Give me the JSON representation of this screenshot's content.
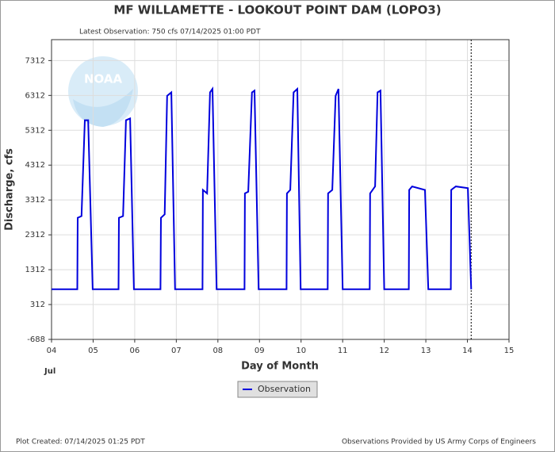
{
  "chart_data": {
    "type": "line",
    "title": "MF WILLAMETTE - LOOKOUT POINT DAM  (LOPO3)",
    "subtitle": "Latest Observation: 750 cfs 07/14/2025 01:00 PDT",
    "watermark": "NOAA",
    "ylabel": "Discharge, cfs",
    "xlabel": "Day of Month",
    "x_sublabel": "Jul",
    "footer_left": "Plot Created: 07/14/2025 01:25 PDT",
    "footer_right": "Observations Provided by US Army Corps of Engineers",
    "xlim": [
      4,
      15
    ],
    "xticks": [
      {
        "value": 4,
        "label": "04"
      },
      {
        "value": 5,
        "label": "05"
      },
      {
        "value": 6,
        "label": "06"
      },
      {
        "value": 7,
        "label": "07"
      },
      {
        "value": 8,
        "label": "08"
      },
      {
        "value": 9,
        "label": "09"
      },
      {
        "value": 10,
        "label": "10"
      },
      {
        "value": 11,
        "label": "11"
      },
      {
        "value": 12,
        "label": "12"
      },
      {
        "value": 13,
        "label": "13"
      },
      {
        "value": 14,
        "label": "14"
      },
      {
        "value": 15,
        "label": "15"
      }
    ],
    "ylim": [
      -688,
      7912
    ],
    "yticks": [
      -688,
      312,
      1312,
      2312,
      3312,
      4312,
      5312,
      6312,
      7312
    ],
    "grid": true,
    "current_time_x": 14.09,
    "x": [
      4.0,
      4.62,
      4.63,
      4.72,
      4.8,
      4.88,
      4.99,
      5.61,
      5.62,
      5.72,
      5.79,
      5.89,
      5.98,
      6.62,
      6.63,
      6.72,
      6.78,
      6.88,
      6.97,
      7.63,
      7.64,
      7.74,
      7.81,
      7.87,
      7.97,
      8.64,
      8.65,
      8.73,
      8.82,
      8.88,
      8.98,
      9.65,
      9.66,
      9.74,
      9.82,
      9.91,
      9.99,
      10.64,
      10.65,
      10.75,
      10.83,
      10.9,
      11.0,
      11.65,
      11.66,
      11.78,
      11.84,
      11.91,
      12.0,
      12.59,
      12.6,
      12.67,
      12.98,
      13.06,
      13.6,
      13.61,
      13.72,
      14.01,
      14.09
    ],
    "series": [
      {
        "name": "Observation",
        "color": "#0000dd",
        "values": [
          750,
          750,
          2800,
          2850,
          5600,
          5600,
          750,
          750,
          2800,
          2850,
          5600,
          5650,
          750,
          750,
          2800,
          2900,
          6300,
          6400,
          750,
          750,
          3600,
          3500,
          6400,
          6500,
          750,
          750,
          3500,
          3550,
          6400,
          6450,
          750,
          750,
          3500,
          3600,
          6400,
          6500,
          750,
          750,
          3500,
          3600,
          6300,
          6500,
          750,
          750,
          3500,
          3700,
          6400,
          6450,
          750,
          750,
          3600,
          3700,
          3600,
          750,
          750,
          3600,
          3700,
          3650,
          750
        ]
      }
    ]
  }
}
